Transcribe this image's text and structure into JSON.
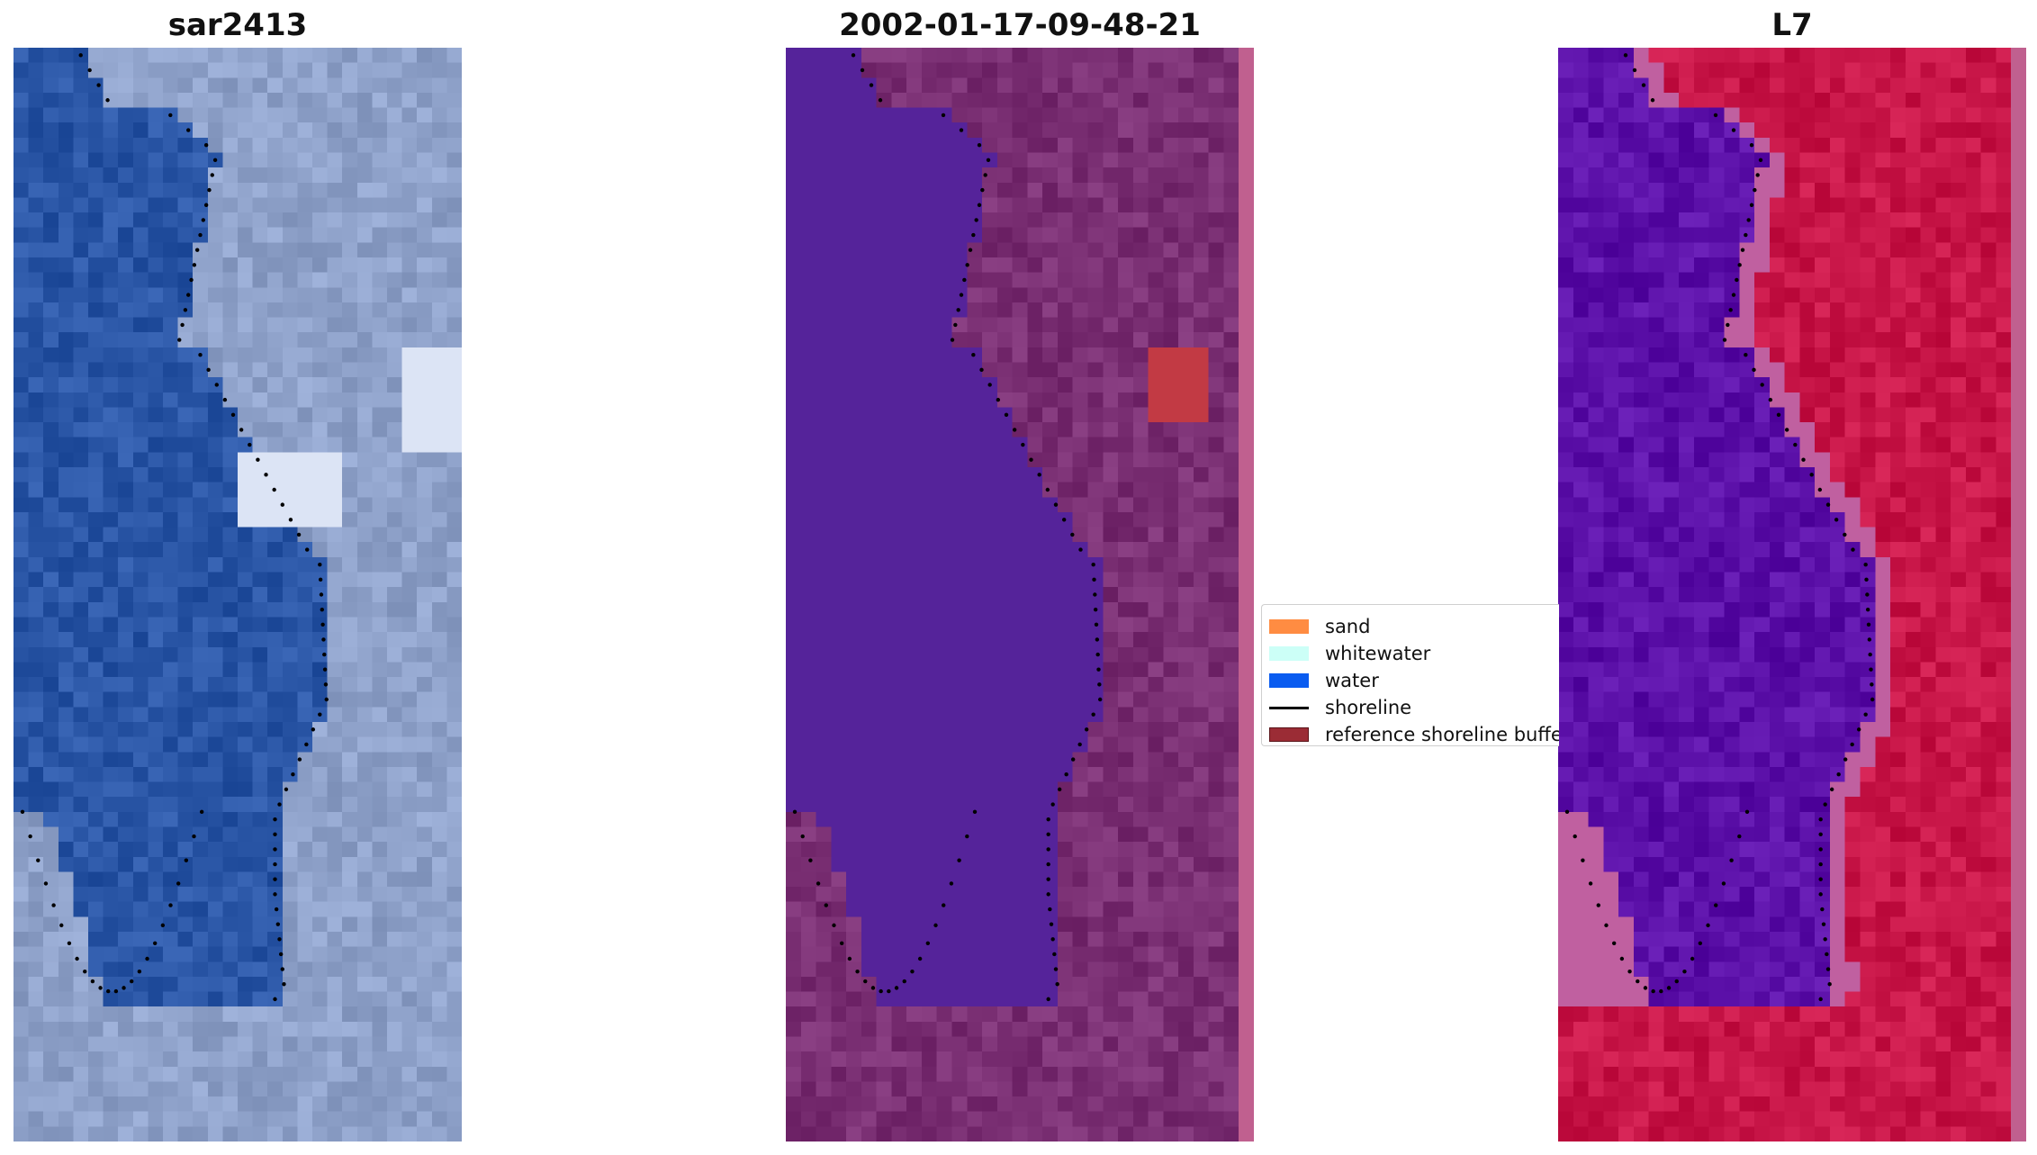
{
  "panels": [
    {
      "title": "sar2413"
    },
    {
      "title": "2002-01-17-09-48-21"
    },
    {
      "title": "L7"
    }
  ],
  "legend": {
    "items": [
      {
        "label": "sand",
        "color": "#ff8c42",
        "kind": "patch"
      },
      {
        "label": "whitewater",
        "color": "#ccfff7",
        "kind": "patch"
      },
      {
        "label": "water",
        "color": "#0a5cf0",
        "kind": "patch"
      },
      {
        "label": "shoreline",
        "color": "#000000",
        "kind": "line"
      },
      {
        "label": "reference shoreline buffer",
        "color": "#9b2c35",
        "kind": "patch"
      }
    ]
  },
  "colors": {
    "rgb_water": "#2a56a6",
    "rgb_land": "#8ea1c9",
    "classified_water": "#55239a",
    "classified_land": "#7a2f73",
    "classified_edge_strip": "#c0608f",
    "buffer_patch": "#c23a44",
    "mndwi_water": "#5b10a8",
    "mndwi_land": "#c81648",
    "mndwi_edge_strip": "#c0608f"
  }
}
